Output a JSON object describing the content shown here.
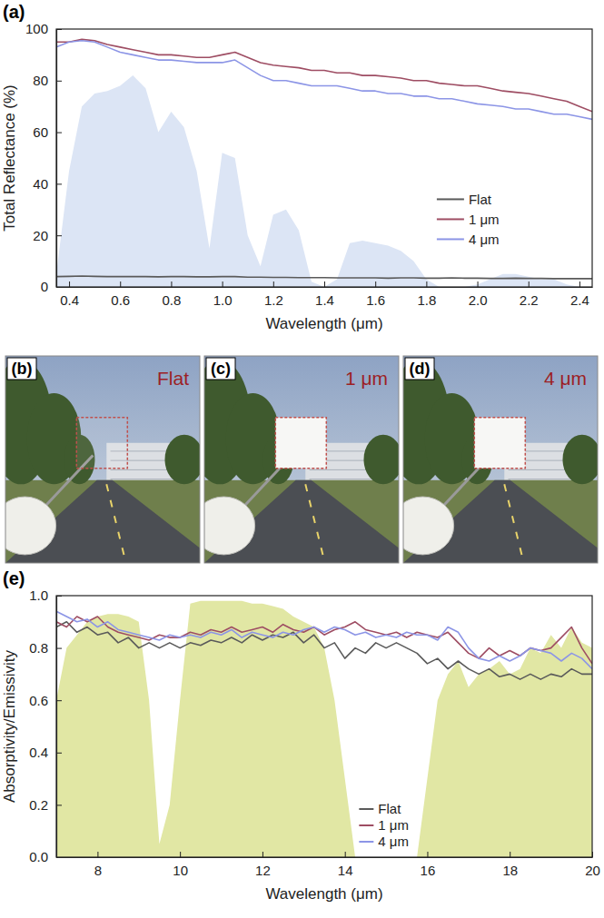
{
  "chart_data": [
    {
      "type": "line",
      "title": "(a)",
      "x_label": "Wavelength (μm)",
      "y_label": "Total Reflectance (%)",
      "x": [
        0.35,
        0.4,
        0.45,
        0.5,
        0.55,
        0.6,
        0.65,
        0.7,
        0.75,
        0.8,
        0.85,
        0.9,
        0.95,
        1,
        1.05,
        1.1,
        1.15,
        1.2,
        1.25,
        1.3,
        1.35,
        1.4,
        1.45,
        1.5,
        1.55,
        1.6,
        1.65,
        1.7,
        1.75,
        1.8,
        1.85,
        1.9,
        1.95,
        2,
        2.05,
        2.1,
        2.15,
        2.2,
        2.25,
        2.3,
        2.35,
        2.4,
        2.45
      ],
      "series": [
        {
          "type": "area",
          "color": "#dce5f5",
          "values": [
            5,
            45,
            70,
            75,
            76,
            78,
            82,
            77,
            60,
            68,
            62,
            45,
            15,
            52,
            50,
            20,
            8,
            28,
            30,
            22,
            2,
            0,
            3,
            17,
            18,
            17,
            16,
            14,
            10,
            3,
            0,
            0,
            0,
            1,
            3,
            5,
            5,
            4,
            3,
            3,
            1,
            0,
            0
          ]
        },
        {
          "name": "Flat",
          "color": "#5a5a5a",
          "values": [
            4,
            4.1,
            4.2,
            4.1,
            4,
            4,
            4,
            4,
            3.9,
            4,
            4,
            3.9,
            3.9,
            4,
            4,
            3.8,
            3.8,
            3.7,
            3.7,
            3.6,
            3.6,
            3.6,
            3.5,
            3.5,
            3.5,
            3.5,
            3.4,
            3.5,
            3.5,
            3.4,
            3.4,
            3.5,
            3.4,
            3.4,
            3.3,
            3.3,
            3.4,
            3.3,
            3.3,
            3.2,
            3.2,
            3.2,
            3.2
          ]
        },
        {
          "name": "1 μm",
          "color": "#9e4d63",
          "values": [
            95,
            95,
            96,
            95.5,
            94,
            93,
            92,
            91,
            90,
            90,
            89.5,
            89,
            89,
            90,
            91,
            89,
            87,
            86,
            85.5,
            85,
            84,
            84,
            83,
            83,
            82,
            82,
            81.5,
            81,
            80,
            80,
            79,
            78.5,
            78,
            78,
            77,
            76,
            75.5,
            75,
            74,
            73,
            72,
            70,
            68
          ]
        },
        {
          "name": "4 μm",
          "color": "#8c95e6",
          "values": [
            93,
            95,
            95.5,
            95,
            93,
            91,
            90,
            89,
            88,
            88,
            87.5,
            87,
            87,
            87,
            88,
            85,
            82,
            80,
            80,
            79,
            78,
            78,
            78,
            77,
            76,
            76,
            75,
            75,
            74,
            74,
            73,
            73,
            72,
            71,
            70.5,
            70,
            69,
            69,
            68,
            67,
            67,
            66,
            65
          ]
        }
      ],
      "xlim": [
        0.35,
        2.45
      ],
      "xticks": [
        0.4,
        0.6,
        0.8,
        {
          "value": 1,
          "label": "1.0"
        },
        1.2,
        1.4,
        1.6,
        1.8,
        {
          "value": 2,
          "label": "2.0"
        },
        2.2,
        2.4
      ],
      "ylim": [
        0,
        100
      ],
      "yticks": [
        0,
        20,
        40,
        60,
        80,
        100
      ],
      "legend": "lower right"
    },
    {
      "type": "line",
      "title": "(e)",
      "x_label": "Wavelength (μm)",
      "y_label": "Absorptivity/Emissivity",
      "x": [
        7,
        7.25,
        7.5,
        7.75,
        8,
        8.25,
        8.5,
        8.75,
        9,
        9.25,
        9.5,
        9.75,
        10,
        10.25,
        10.5,
        10.75,
        11,
        11.25,
        11.5,
        11.75,
        12,
        12.25,
        12.5,
        12.75,
        13,
        13.25,
        13.5,
        13.75,
        14,
        14.25,
        14.5,
        14.75,
        15,
        15.25,
        15.5,
        15.75,
        16,
        16.25,
        16.5,
        16.75,
        17,
        17.25,
        17.5,
        17.75,
        18,
        18.25,
        18.5,
        18.75,
        19,
        19.25,
        19.5,
        19.75,
        20
      ],
      "series": [
        {
          "type": "area",
          "color": "#e1e7a4",
          "values": [
            0.6,
            0.8,
            0.85,
            0.9,
            0.92,
            0.93,
            0.93,
            0.92,
            0.9,
            0.6,
            0.05,
            0.2,
            0.6,
            0.97,
            0.98,
            0.98,
            0.98,
            0.98,
            0.98,
            0.97,
            0.97,
            0.96,
            0.95,
            0.92,
            0.9,
            0.88,
            0.8,
            0.6,
            0.3,
            0,
            0,
            0,
            0,
            0,
            0,
            0,
            0.3,
            0.6,
            0.7,
            0.75,
            0.65,
            0.7,
            0.72,
            0.75,
            0.7,
            0.72,
            0.8,
            0.78,
            0.85,
            0.8,
            0.88,
            0.82,
            0.8
          ]
        },
        {
          "name": "Flat",
          "color": "#5a5a5a",
          "values": [
            0.88,
            0.9,
            0.86,
            0.88,
            0.85,
            0.86,
            0.82,
            0.84,
            0.8,
            0.82,
            0.8,
            0.82,
            0.8,
            0.82,
            0.81,
            0.83,
            0.82,
            0.84,
            0.82,
            0.85,
            0.83,
            0.85,
            0.84,
            0.86,
            0.82,
            0.85,
            0.8,
            0.82,
            0.76,
            0.8,
            0.78,
            0.82,
            0.8,
            0.82,
            0.8,
            0.78,
            0.74,
            0.76,
            0.72,
            0.75,
            0.72,
            0.7,
            0.72,
            0.69,
            0.7,
            0.68,
            0.7,
            0.68,
            0.7,
            0.69,
            0.72,
            0.7,
            0.7
          ]
        },
        {
          "name": "1 μm",
          "color": "#9e4d63",
          "values": [
            0.9,
            0.88,
            0.92,
            0.9,
            0.92,
            0.88,
            0.86,
            0.85,
            0.84,
            0.83,
            0.85,
            0.84,
            0.84,
            0.86,
            0.85,
            0.87,
            0.86,
            0.88,
            0.86,
            0.87,
            0.88,
            0.86,
            0.89,
            0.87,
            0.86,
            0.88,
            0.85,
            0.87,
            0.88,
            0.9,
            0.87,
            0.86,
            0.85,
            0.86,
            0.84,
            0.86,
            0.85,
            0.84,
            0.86,
            0.82,
            0.78,
            0.76,
            0.8,
            0.77,
            0.79,
            0.77,
            0.8,
            0.79,
            0.8,
            0.84,
            0.88,
            0.8,
            0.74
          ]
        },
        {
          "name": "4 μm",
          "color": "#8c95e6",
          "values": [
            0.94,
            0.92,
            0.9,
            0.91,
            0.88,
            0.9,
            0.87,
            0.86,
            0.85,
            0.84,
            0.83,
            0.85,
            0.84,
            0.85,
            0.84,
            0.86,
            0.85,
            0.87,
            0.84,
            0.86,
            0.85,
            0.84,
            0.86,
            0.85,
            0.87,
            0.88,
            0.86,
            0.88,
            0.87,
            0.85,
            0.86,
            0.84,
            0.85,
            0.84,
            0.86,
            0.85,
            0.85,
            0.83,
            0.88,
            0.86,
            0.8,
            0.76,
            0.75,
            0.77,
            0.75,
            0.77,
            0.8,
            0.79,
            0.78,
            0.75,
            0.78,
            0.76,
            0.72
          ]
        }
      ],
      "xlim": [
        7,
        20
      ],
      "xticks": [
        8,
        10,
        12,
        14,
        16,
        18,
        20
      ],
      "ylim": [
        0,
        1
      ],
      "yticks": [
        {
          "value": 0,
          "label": "0.0"
        },
        0.2,
        0.4,
        0.6,
        0.8,
        {
          "value": 1,
          "label": "1.0"
        }
      ],
      "legend": "lower center"
    }
  ],
  "photos": [
    {
      "panel": "(b)",
      "label": "Flat"
    },
    {
      "panel": "(c)",
      "label": "1 μm"
    },
    {
      "panel": "(d)",
      "label": "4 μm"
    }
  ]
}
